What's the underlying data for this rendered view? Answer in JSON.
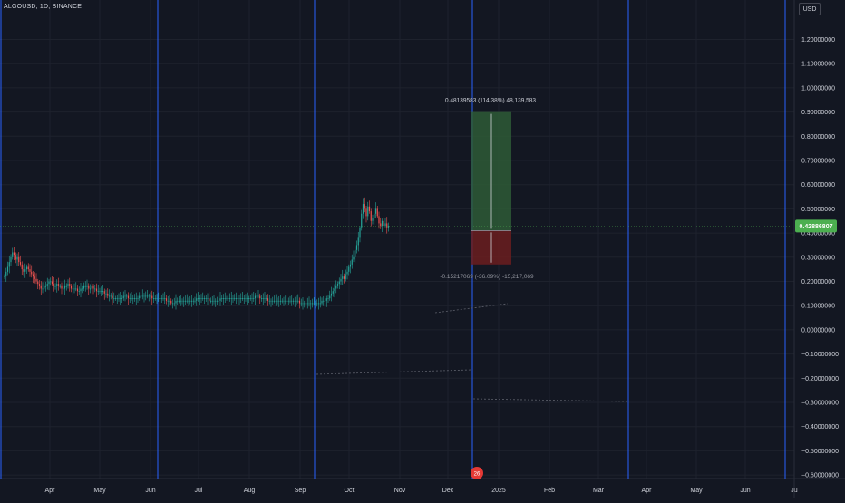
{
  "header": {
    "symbol": "ALGOUSD, 1D, BINANCE",
    "currency": "USD"
  },
  "colors": {
    "background": "#131722",
    "grid": "#1e222d",
    "separator": "#2962ff",
    "up": "#26a69a",
    "down": "#ef5350",
    "profit_zone": "#2e5a36",
    "loss_zone": "#6b1d1f",
    "price_tag": "#4caf50",
    "text": "#d1d4dc"
  },
  "position_tool": {
    "target_label": "0.48139583 (114.38%) 48,139,583",
    "stop_label": "-0.15217069 (-36.09%) -15,217,069",
    "entry": 0.41,
    "target": 0.9,
    "stop": 0.27
  },
  "current_price_label": "0.42886807",
  "event_badge": "26",
  "chart_data": {
    "type": "candlestick",
    "title": "ALGOUSD, 1D, BINANCE",
    "xlabel": "",
    "ylabel": "",
    "x_ticks": [
      "Apr",
      "May",
      "Jun",
      "Jul",
      "Aug",
      "Sep",
      "Oct",
      "Nov",
      "Dec",
      "2025",
      "Feb",
      "Mar",
      "Apr",
      "May",
      "Jun",
      "Ju"
    ],
    "y_ticks": [
      "1.20000000",
      "1.10000000",
      "1.00000000",
      "0.90000000",
      "0.80000000",
      "0.70000000",
      "0.60000000",
      "0.50000000",
      "0.40000000",
      "0.30000000",
      "0.20000000",
      "0.10000000",
      "0.00000000",
      "−0.10000000",
      "−0.20000000",
      "−0.30000000",
      "−0.40000000",
      "−0.50000000",
      "−0.60000000"
    ],
    "ylim": [
      -0.6,
      1.27
    ],
    "grid": true,
    "close_series": {
      "day_start": "Mar 18",
      "values": [
        0.22,
        0.24,
        0.26,
        0.28,
        0.3,
        0.32,
        0.31,
        0.29,
        0.3,
        0.28,
        0.27,
        0.25,
        0.24,
        0.25,
        0.26,
        0.25,
        0.24,
        0.23,
        0.22,
        0.21,
        0.2,
        0.19,
        0.18,
        0.17,
        0.17,
        0.18,
        0.18,
        0.19,
        0.2,
        0.2,
        0.19,
        0.18,
        0.18,
        0.19,
        0.18,
        0.18,
        0.17,
        0.17,
        0.18,
        0.18,
        0.19,
        0.18,
        0.17,
        0.17,
        0.17,
        0.17,
        0.16,
        0.16,
        0.17,
        0.17,
        0.18,
        0.18,
        0.18,
        0.17,
        0.17,
        0.18,
        0.17,
        0.17,
        0.16,
        0.16,
        0.16,
        0.16,
        0.16,
        0.15,
        0.15,
        0.14,
        0.14,
        0.14,
        0.13,
        0.13,
        0.13,
        0.13,
        0.13,
        0.13,
        0.13,
        0.14,
        0.14,
        0.14,
        0.13,
        0.13,
        0.13,
        0.13,
        0.13,
        0.13,
        0.13,
        0.14,
        0.14,
        0.14,
        0.14,
        0.14,
        0.14,
        0.14,
        0.14,
        0.13,
        0.13,
        0.13,
        0.13,
        0.13,
        0.13,
        0.13,
        0.13,
        0.13,
        0.12,
        0.12,
        0.12,
        0.11,
        0.11,
        0.11,
        0.12,
        0.12,
        0.12,
        0.12,
        0.12,
        0.12,
        0.12,
        0.12,
        0.12,
        0.12,
        0.12,
        0.12,
        0.12,
        0.13,
        0.13,
        0.13,
        0.13,
        0.13,
        0.13,
        0.13,
        0.13,
        0.12,
        0.12,
        0.12,
        0.12,
        0.12,
        0.12,
        0.12,
        0.13,
        0.13,
        0.13,
        0.13,
        0.13,
        0.13,
        0.13,
        0.13,
        0.13,
        0.13,
        0.13,
        0.13,
        0.13,
        0.13,
        0.13,
        0.13,
        0.13,
        0.13,
        0.13,
        0.13,
        0.13,
        0.13,
        0.14,
        0.14,
        0.14,
        0.13,
        0.13,
        0.13,
        0.13,
        0.13,
        0.12,
        0.12,
        0.12,
        0.12,
        0.12,
        0.12,
        0.12,
        0.12,
        0.12,
        0.12,
        0.12,
        0.12,
        0.12,
        0.12,
        0.12,
        0.12,
        0.12,
        0.12,
        0.12,
        0.12,
        0.11,
        0.11,
        0.11,
        0.11,
        0.11,
        0.11,
        0.11,
        0.11,
        0.11,
        0.11,
        0.11,
        0.11,
        0.11,
        0.11,
        0.12,
        0.12,
        0.12,
        0.13,
        0.13,
        0.14,
        0.15,
        0.16,
        0.17,
        0.18,
        0.19,
        0.2,
        0.21,
        0.22,
        0.21,
        0.23,
        0.24,
        0.26,
        0.27,
        0.29,
        0.3,
        0.33,
        0.35,
        0.38,
        0.42,
        0.48,
        0.52,
        0.5,
        0.47,
        0.51,
        0.49,
        0.45,
        0.46,
        0.48,
        0.5,
        0.47,
        0.44,
        0.43,
        0.45,
        0.43,
        0.44,
        0.42,
        0.43
      ]
    }
  }
}
